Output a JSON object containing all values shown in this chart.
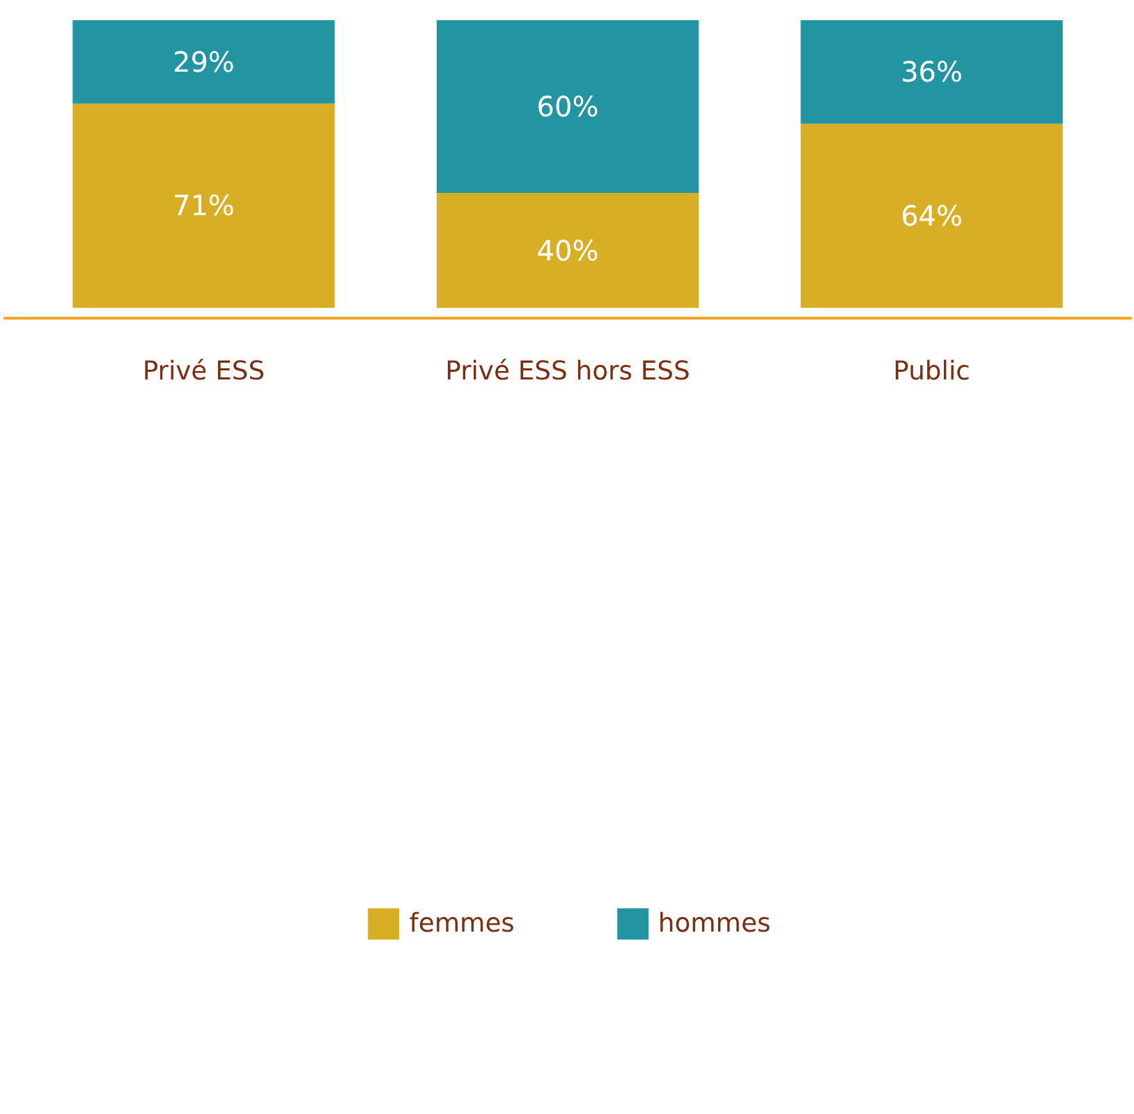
{
  "chart_data": {
    "type": "bar",
    "stacked": true,
    "categories": [
      "Privé ESS",
      "Privé ESS hors ESS",
      "Public"
    ],
    "series": [
      {
        "name": "femmes",
        "color": "#d9ae27",
        "values": [
          71,
          40,
          64
        ],
        "value_labels": [
          "71%",
          "40%",
          "64%"
        ]
      },
      {
        "name": "hommes",
        "color": "#2394a2",
        "values": [
          29,
          60,
          36
        ],
        "value_labels": [
          "29%",
          "60%",
          "36%"
        ]
      }
    ],
    "legend": "bottom",
    "grid": false
  }
}
